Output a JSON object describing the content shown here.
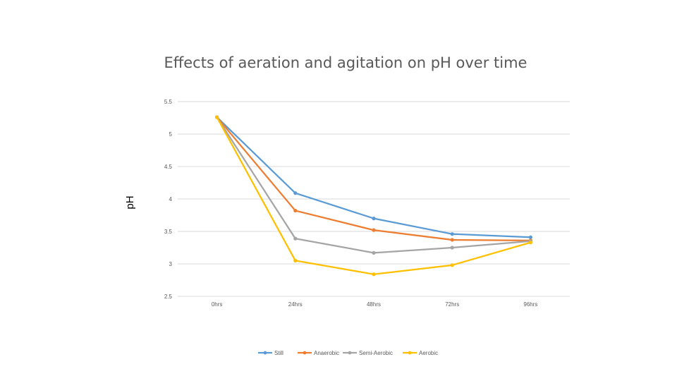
{
  "chart_data": {
    "type": "line",
    "title": "Effects of aeration and agitation on pH over time",
    "xlabel": "",
    "ylabel": "pH",
    "categories": [
      "0hrs",
      "24hrs",
      "48hrs",
      "72hrs",
      "96hrs"
    ],
    "ylim": [
      2.5,
      5.5
    ],
    "yticks": [
      "2.5",
      "3",
      "3.5",
      "4",
      "4.5",
      "5",
      "5.5"
    ],
    "grid": true,
    "legend_position": "bottom",
    "series": [
      {
        "name": "Still",
        "color": "#5b9bd5",
        "values": [
          5.26,
          4.09,
          3.7,
          3.46,
          3.41
        ]
      },
      {
        "name": "Anaerobic",
        "color": "#ed7d31",
        "values": [
          5.26,
          3.82,
          3.52,
          3.37,
          3.36
        ]
      },
      {
        "name": "Semi-Aerobic",
        "color": "#a5a5a5",
        "values": [
          5.26,
          3.39,
          3.17,
          3.25,
          3.35
        ]
      },
      {
        "name": "Aerobic",
        "color": "#ffc000",
        "values": [
          5.26,
          3.05,
          2.84,
          2.98,
          3.33
        ]
      }
    ]
  }
}
